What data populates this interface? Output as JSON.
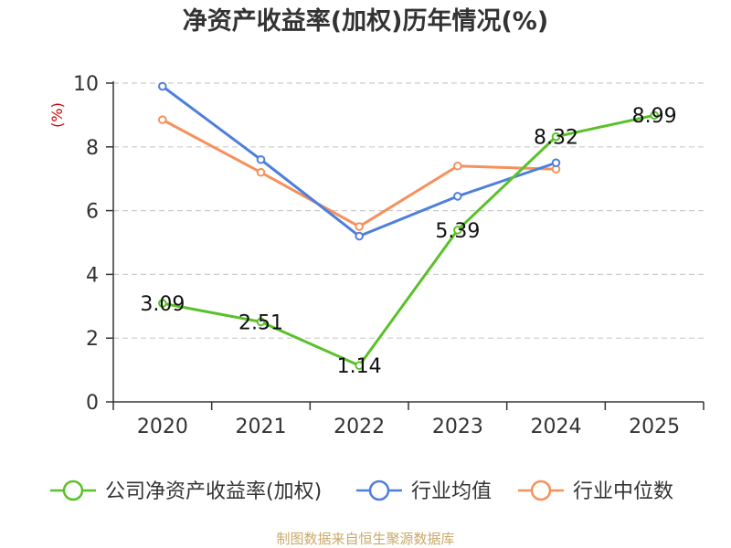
{
  "chart_data": {
    "type": "line",
    "title": "净资产收益率(加权)历年情况(%)",
    "ylabel": "(%)",
    "xlabel": "",
    "categories": [
      "2020",
      "2021",
      "2022",
      "2023",
      "2024",
      "2025"
    ],
    "ylim": [
      0,
      10
    ],
    "yticks": [
      0,
      2,
      4,
      6,
      8,
      10
    ],
    "grid": true,
    "legend_position": "bottom",
    "series": [
      {
        "name": "公司净资产收益率(加权)",
        "color": "#5bc12a",
        "values": [
          3.09,
          2.51,
          1.14,
          5.39,
          8.32,
          8.99
        ],
        "labels": [
          "3.09",
          "2.51",
          "1.14",
          "5.39",
          "8.32",
          "8.99"
        ]
      },
      {
        "name": "行业均值",
        "color": "#4f7fdc",
        "values": [
          9.9,
          7.6,
          5.2,
          6.45,
          7.5,
          null
        ]
      },
      {
        "name": "行业中位数",
        "color": "#f5915c",
        "values": [
          8.85,
          7.2,
          5.5,
          7.4,
          7.3,
          null
        ]
      }
    ],
    "unit_color": "#cc0000"
  },
  "source": {
    "text": "制图数据来自恒生聚源数据库",
    "color": "#c9a96a"
  }
}
